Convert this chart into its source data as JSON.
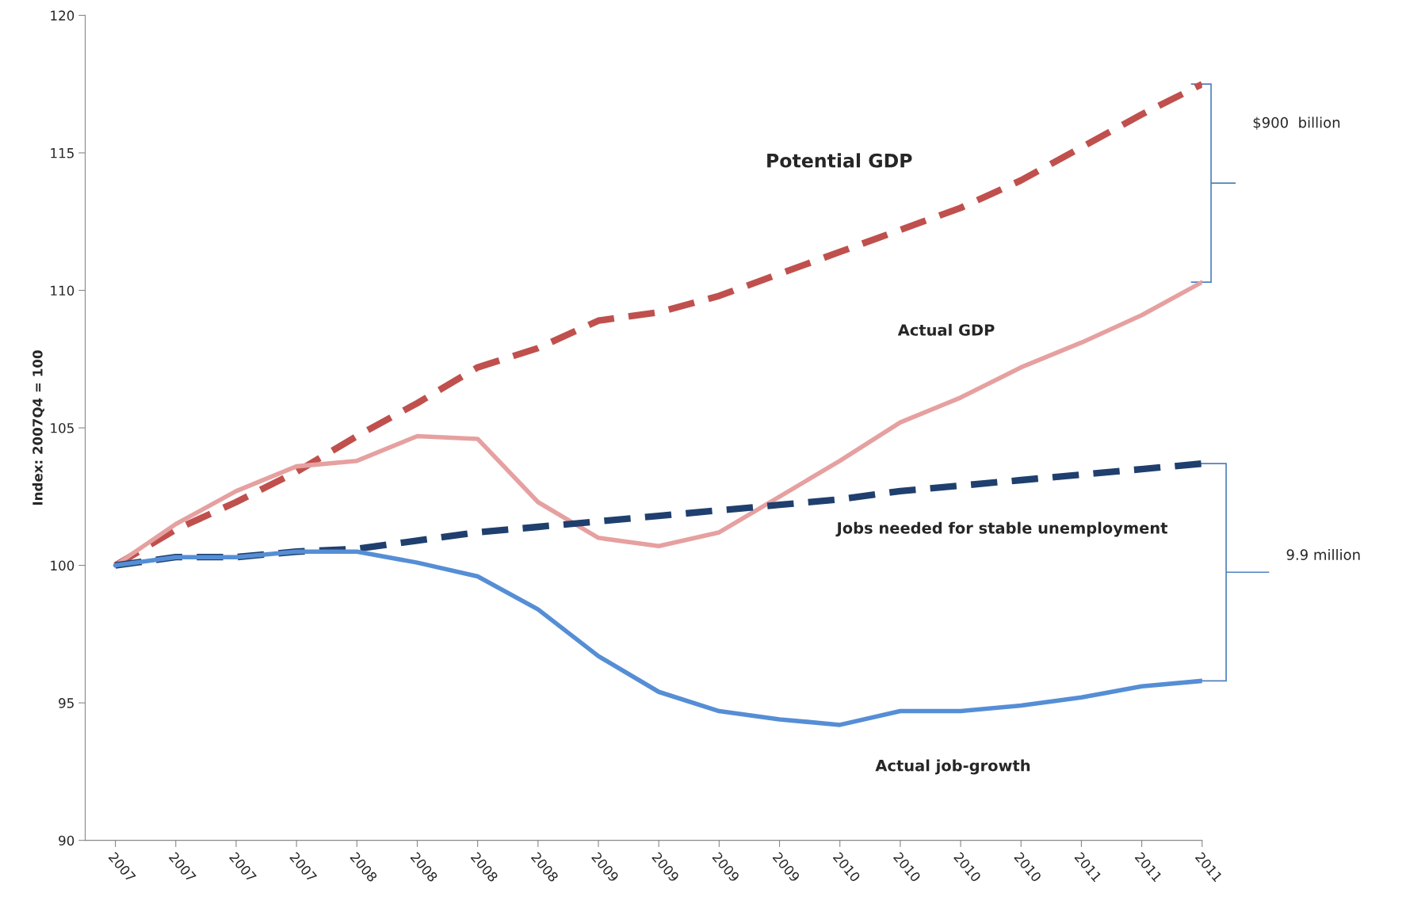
{
  "chart_data": {
    "type": "line",
    "ylabel": "Index: 2007Q4 = 100",
    "categories": [
      "2007",
      "2007",
      "2007",
      "2007",
      "2008",
      "2008",
      "2008",
      "2008",
      "2009",
      "2009",
      "2009",
      "2009",
      "2010",
      "2010",
      "2010",
      "2010",
      "2011",
      "2011",
      "2011"
    ],
    "series": [
      {
        "name": "Potential GDP",
        "color": "#c0504d",
        "line_style": "dashed",
        "values": [
          100,
          101.3,
          102.3,
          103.4,
          104.7,
          105.9,
          107.2,
          107.9,
          108.9,
          109.2,
          109.8,
          110.6,
          111.4,
          112.2,
          113.0,
          114.0,
          115.2,
          116.4,
          117.5
        ]
      },
      {
        "name": "Actual GDP",
        "color": "#e6a0a0",
        "line_style": "solid",
        "values": [
          100,
          101.5,
          102.7,
          103.6,
          103.8,
          104.7,
          104.6,
          102.3,
          101.0,
          100.7,
          101.2,
          102.5,
          103.8,
          105.2,
          106.1,
          107.2,
          108.1,
          109.1,
          110.3
        ]
      },
      {
        "name": "Jobs needed for stable unemployment",
        "color": "#1f3f6e",
        "line_style": "dashed",
        "values": [
          100,
          100.3,
          100.3,
          100.5,
          100.6,
          100.9,
          101.2,
          101.4,
          101.6,
          101.8,
          102.0,
          102.2,
          102.4,
          102.7,
          102.9,
          103.1,
          103.3,
          103.5,
          103.7
        ]
      },
      {
        "name": "Actual job-growth",
        "color": "#558ed5",
        "line_style": "solid",
        "values": [
          100,
          100.3,
          100.3,
          100.5,
          100.5,
          100.1,
          99.6,
          98.4,
          96.7,
          95.4,
          94.7,
          94.4,
          94.2,
          94.7,
          94.7,
          94.9,
          95.2,
          95.6,
          95.8
        ]
      }
    ],
    "annotations": [
      "$900  billion",
      "9.9 million"
    ],
    "ylim": [
      90,
      120
    ],
    "yticks": [
      90,
      95,
      100,
      105,
      110,
      115,
      120
    ],
    "grid": false,
    "marker": "none"
  }
}
